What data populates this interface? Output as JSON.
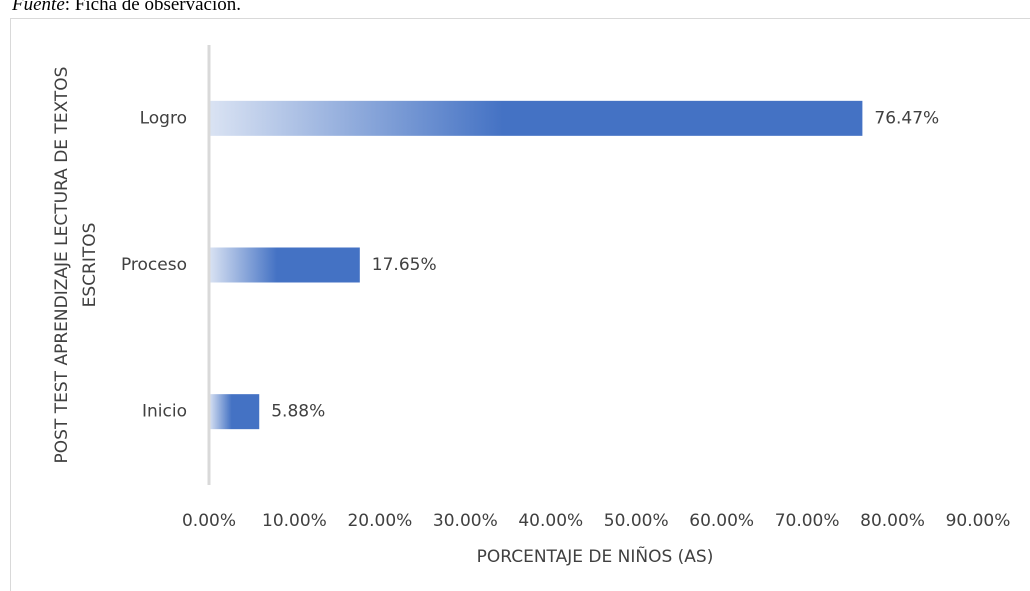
{
  "source": {
    "label": "Fuente",
    "text": ": Ficha de observación."
  },
  "chart_data": {
    "type": "hbar",
    "x_label": "PORCENTAJE DE NIÑOS (AS)",
    "y_label": [
      "POST TEST APRENDIZAJE LECTURA DE TEXTOS",
      "ESCRITOS"
    ],
    "categories": [
      "Logro",
      "Proceso",
      "Inicio"
    ],
    "values": [
      76.47,
      17.65,
      5.88
    ],
    "value_labels": [
      "76.47%",
      "17.65%",
      "5.88%"
    ],
    "color": "#4472c4",
    "xlim": [
      0,
      90
    ],
    "xticks": [
      {
        "value": 0,
        "label": "0.00%"
      },
      {
        "value": 10,
        "label": "10.00%"
      },
      {
        "value": 20,
        "label": "20.00%"
      },
      {
        "value": 30,
        "label": "30.00%"
      },
      {
        "value": 40,
        "label": "40.00%"
      },
      {
        "value": 50,
        "label": "50.00%"
      },
      {
        "value": 60,
        "label": "60.00%"
      },
      {
        "value": 70,
        "label": "70.00%"
      },
      {
        "value": 80,
        "label": "80.00%"
      },
      {
        "value": 90,
        "label": "90.00%"
      }
    ],
    "grid": false
  }
}
